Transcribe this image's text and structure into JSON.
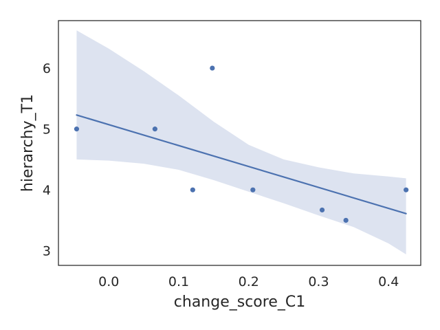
{
  "chart_data": {
    "type": "scatter",
    "xlabel": "change_score_C1",
    "ylabel": "hierarchy_T1",
    "xlim": [
      -0.072,
      0.446
    ],
    "ylim": [
      2.76,
      6.78
    ],
    "x_ticks": [
      0.0,
      0.1,
      0.2,
      0.3,
      0.4
    ],
    "x_tick_labels": [
      "0.0",
      "0.1",
      "0.2",
      "0.3",
      "0.4"
    ],
    "y_ticks": [
      3,
      4,
      5,
      6
    ],
    "y_tick_labels": [
      "3",
      "4",
      "5",
      "6"
    ],
    "grid": false,
    "colors": {
      "points": "#4c72b0",
      "line": "#4c72b0",
      "band": "#dde3f0",
      "axes": "#262626"
    },
    "points": [
      {
        "x": -0.046,
        "y": 5.0
      },
      {
        "x": 0.066,
        "y": 5.0
      },
      {
        "x": 0.12,
        "y": 4.0
      },
      {
        "x": 0.148,
        "y": 6.0
      },
      {
        "x": 0.206,
        "y": 4.0
      },
      {
        "x": 0.305,
        "y": 3.67
      },
      {
        "x": 0.339,
        "y": 3.5
      },
      {
        "x": 0.425,
        "y": 4.0
      }
    ],
    "regression_line": {
      "x": [
        -0.046,
        0.425
      ],
      "y": [
        5.23,
        3.61
      ]
    },
    "confidence_band": {
      "x": [
        -0.046,
        0.0,
        0.05,
        0.1,
        0.15,
        0.2,
        0.25,
        0.3,
        0.35,
        0.4,
        0.425
      ],
      "lower": [
        4.5,
        4.48,
        4.43,
        4.33,
        4.16,
        3.97,
        3.78,
        3.58,
        3.39,
        3.12,
        2.94
      ],
      "upper": [
        6.62,
        6.32,
        5.95,
        5.55,
        5.12,
        4.74,
        4.5,
        4.37,
        4.27,
        4.22,
        4.19
      ]
    }
  }
}
